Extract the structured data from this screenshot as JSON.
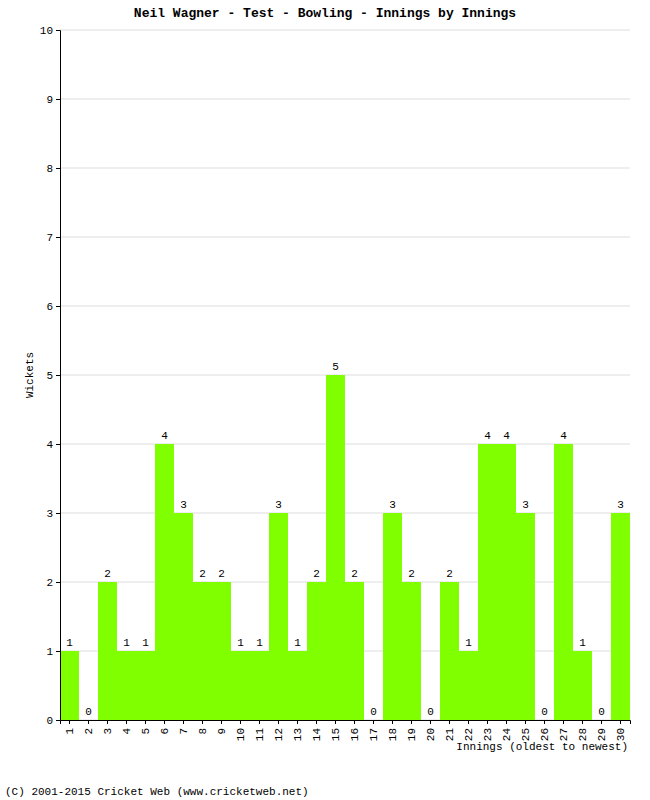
{
  "chart_data": {
    "type": "bar",
    "title": "Neil Wagner - Test - Bowling - Innings by Innings",
    "x_label": "Innings (oldest to newest)",
    "y_label": "Wickets",
    "source": "(C) 2001-2015 Cricket Web (www.cricketweb.net)",
    "categories": [
      "1",
      "2",
      "3",
      "4",
      "5",
      "6",
      "7",
      "8",
      "9",
      "10",
      "11",
      "12",
      "13",
      "14",
      "15",
      "16",
      "17",
      "18",
      "19",
      "20",
      "21",
      "22",
      "23",
      "24",
      "25",
      "26",
      "27",
      "28",
      "29",
      "30"
    ],
    "values": [
      1,
      0,
      2,
      1,
      1,
      4,
      3,
      2,
      2,
      1,
      1,
      3,
      1,
      2,
      5,
      2,
      0,
      3,
      2,
      0,
      2,
      1,
      4,
      4,
      3,
      0,
      4,
      1,
      0,
      3
    ],
    "color": "#80ff00",
    "ylim": [
      0,
      10
    ],
    "yticks": [
      0,
      1,
      2,
      3,
      4,
      5,
      6,
      7,
      8,
      9,
      10
    ],
    "grid": true,
    "data_labels": true
  }
}
